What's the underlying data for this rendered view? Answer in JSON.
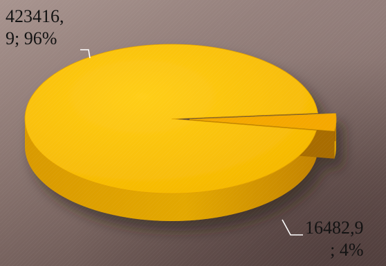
{
  "chart_data": {
    "type": "pie",
    "style": "3d",
    "slices": [
      {
        "value": 423416.9,
        "percent": 96,
        "label_lines": [
          "423416,",
          "9; 96%"
        ],
        "color": "#f5b700"
      },
      {
        "value": 16482.9,
        "percent": 4,
        "label_lines": [
          "16482,9",
          "; 4%"
        ],
        "color": "#f5a800",
        "exploded": true
      }
    ],
    "legend": "none",
    "data_labels": "outside with leader lines"
  },
  "colors": {
    "slice_top": "#f5b700",
    "slice_side": "#c48400",
    "label_text": "#111111",
    "leader_line": "#ffffff"
  }
}
